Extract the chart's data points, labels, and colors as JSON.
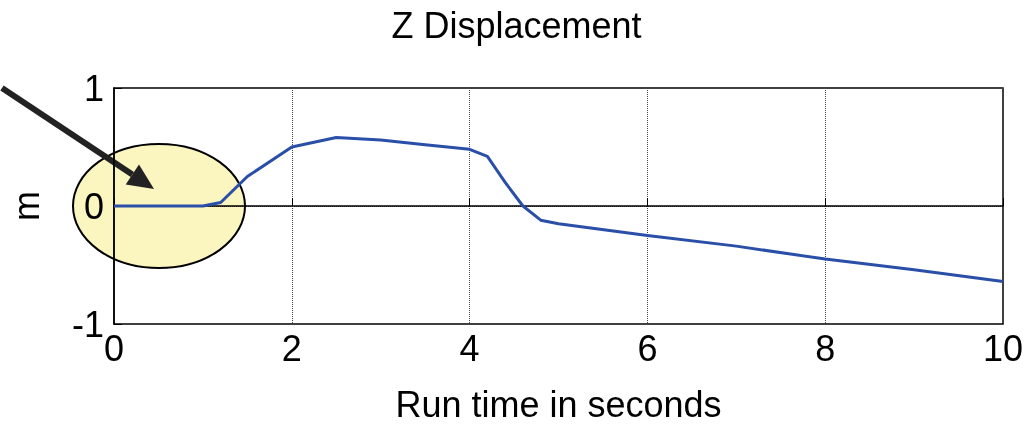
{
  "chart_data": {
    "type": "line",
    "title": "Z Displacement",
    "xlabel": "Run time in seconds",
    "ylabel": "m",
    "x": [
      0,
      0.5,
      1,
      1.2,
      1.5,
      2,
      2.5,
      3,
      3.5,
      4,
      4.2,
      4.4,
      4.6,
      4.8,
      5,
      6,
      7,
      8,
      9,
      10
    ],
    "series": [
      {
        "color": "#2a4fa8",
        "values": [
          0,
          0,
          0,
          0.03,
          0.25,
          0.5,
          0.58,
          0.56,
          0.52,
          0.48,
          0.42,
          0.2,
          0.0,
          -0.12,
          -0.15,
          -0.25,
          -0.34,
          -0.45,
          -0.54,
          -0.64
        ]
      }
    ],
    "xlim": [
      0,
      10
    ],
    "xticks": [
      0,
      2,
      4,
      6,
      8,
      10
    ],
    "ylim": [
      -1,
      1
    ],
    "yticks": [
      -1,
      0,
      1
    ],
    "grid": true,
    "marker": "none",
    "line_style": "solid"
  }
}
